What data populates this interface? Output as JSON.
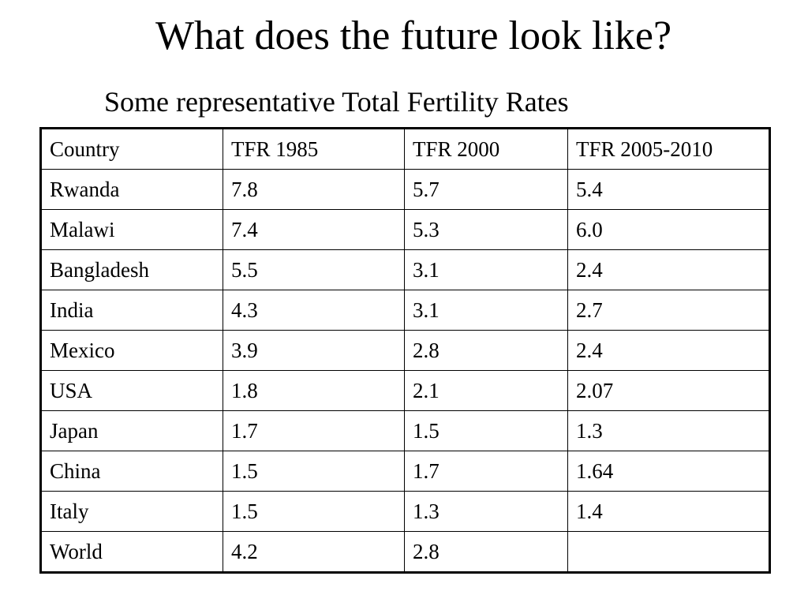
{
  "slide": {
    "title": "What does the future look like?",
    "subtitle": "Some representative Total Fertility Rates"
  },
  "table": {
    "headers": [
      "Country",
      "TFR 1985",
      "TFR 2000",
      "TFR 2005-2010"
    ],
    "rows": [
      [
        "Rwanda",
        "7.8",
        "5.7",
        "5.4"
      ],
      [
        "Malawi",
        "7.4",
        "5.3",
        "6.0"
      ],
      [
        "Bangladesh",
        "5.5",
        "3.1",
        "2.4"
      ],
      [
        "India",
        "4.3",
        "3.1",
        "2.7"
      ],
      [
        "Mexico",
        "3.9",
        "2.8",
        "2.4"
      ],
      [
        "USA",
        "1.8",
        "2.1",
        "2.07"
      ],
      [
        "Japan",
        "1.7",
        "1.5",
        "1.3"
      ],
      [
        "China",
        "1.5",
        "1.7",
        "1.64"
      ],
      [
        "Italy",
        "1.5",
        "1.3",
        "1.4"
      ],
      [
        "World",
        "4.2",
        "2.8",
        ""
      ]
    ]
  }
}
